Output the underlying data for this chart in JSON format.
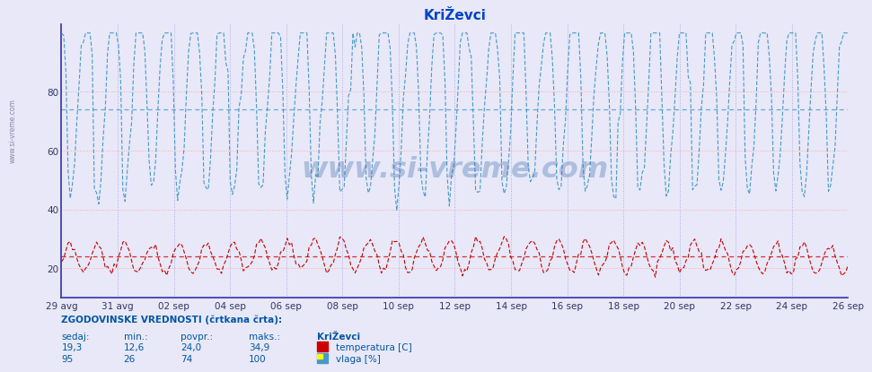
{
  "title": "KriŽevci",
  "bg_color": "#e8e8f8",
  "plot_bg_color": "#e8e8f8",
  "x_labels": [
    "29 avg",
    "31 avg",
    "02 sep",
    "04 sep",
    "06 sep",
    "08 sep",
    "10 sep",
    "12 sep",
    "14 sep",
    "16 sep",
    "18 sep",
    "20 sep",
    "22 sep",
    "24 sep",
    "26 sep"
  ],
  "y_ticks": [
    20,
    40,
    60,
    80
  ],
  "y_min": 10,
  "y_max": 103,
  "temp_color": "#cc0000",
  "hum_color": "#4499cc",
  "grid_color_h": "#ffaaaa",
  "grid_color_v": "#aaaaee",
  "avg_line_temp": 24.0,
  "avg_line_hum": 74.0,
  "temp_min": 12.6,
  "temp_max": 34.9,
  "temp_avg": 24.0,
  "temp_current": 19.3,
  "hum_min": 26,
  "hum_max": 100,
  "hum_avg": 74,
  "hum_current": 95,
  "watermark": "www.si-vreme.com",
  "footer_label_color": "#0055aa",
  "footer_value_color": "#0055aa",
  "spine_color": "#3333aa",
  "n_points": 360,
  "n_days": 29
}
